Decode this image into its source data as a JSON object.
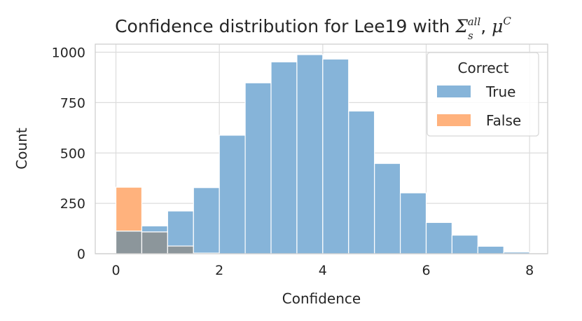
{
  "chart_data": {
    "type": "histogram",
    "title": {
      "prefix": "Confidence distribution for Lee19 with ",
      "sigma": "Σ",
      "sigma_sub": "s",
      "sigma_sup": "all",
      "comma": ", ",
      "mu": "μ",
      "mu_sup": "C"
    },
    "xlabel": "Confidence",
    "ylabel": "Count",
    "xlim": [
      -0.4,
      8.35
    ],
    "ylim": [
      0,
      1040
    ],
    "xticks": [
      0,
      2,
      4,
      6,
      8
    ],
    "yticks": [
      0,
      250,
      500,
      750,
      1000
    ],
    "bin_width": 0.5,
    "bin_starts": [
      0,
      0.5,
      1,
      1.5,
      2,
      2.5,
      3,
      3.5,
      4,
      4.5,
      5,
      5.5,
      6,
      6.5,
      7,
      7.5
    ],
    "series": [
      {
        "name": "True",
        "color": "#86b4d9",
        "values": [
          112,
          138,
          212,
          328,
          588,
          848,
          952,
          988,
          966,
          708,
          448,
          302,
          155,
          92,
          37,
          8
        ]
      },
      {
        "name": "False",
        "color": "#ffb27d",
        "values": [
          330,
          108,
          38,
          3,
          0,
          0,
          0,
          0,
          0,
          0,
          0,
          0,
          0,
          0,
          0,
          0
        ]
      }
    ],
    "overlap_color": "#8c969b",
    "legend": {
      "title": "Correct",
      "position": "upper right"
    },
    "grid": true
  }
}
